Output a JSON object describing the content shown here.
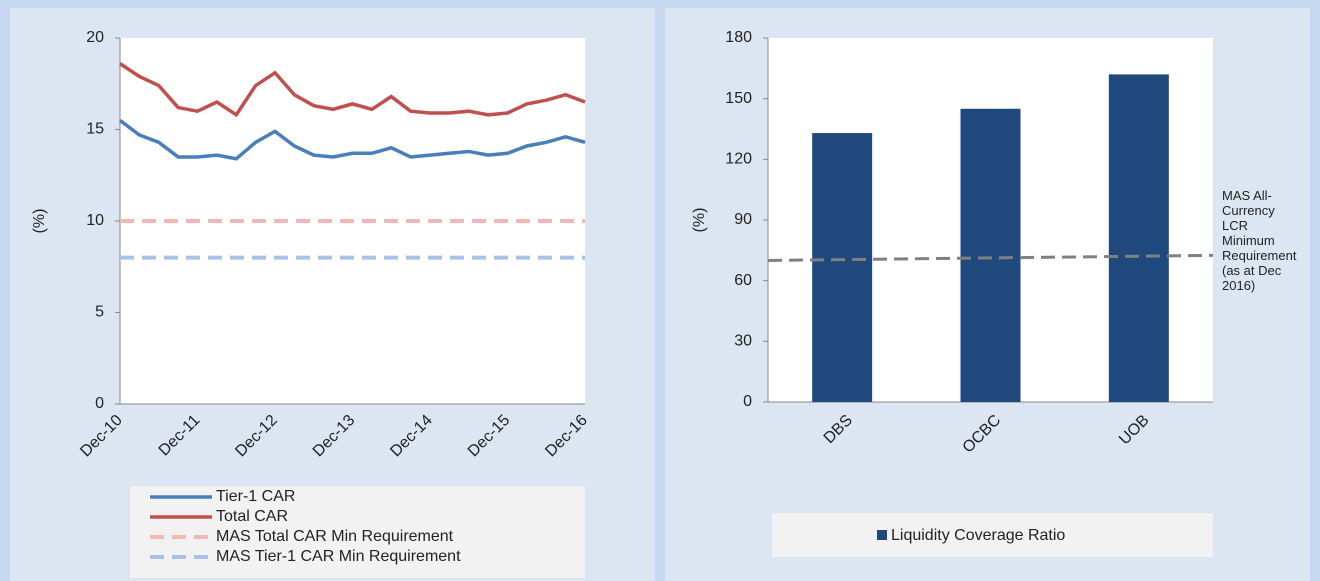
{
  "chart_data": [
    {
      "type": "line",
      "y_label": "(%)",
      "categories": [
        "Dec-10",
        null,
        null,
        null,
        "Dec-11",
        null,
        null,
        null,
        "Dec-12",
        null,
        null,
        null,
        "Dec-13",
        null,
        null,
        null,
        "Dec-14",
        null,
        null,
        null,
        "Dec-15",
        null,
        null,
        null,
        "Dec-16"
      ],
      "series": [
        {
          "name": "Tier-1 CAR",
          "color": "#4a7ebb",
          "dashed": false,
          "values": [
            15.5,
            14.7,
            14.3,
            13.5,
            13.5,
            13.6,
            13.4,
            14.3,
            14.9,
            14.1,
            13.6,
            13.5,
            13.7,
            13.7,
            14.0,
            13.5,
            13.6,
            13.7,
            13.8,
            13.6,
            13.7,
            14.1,
            14.3,
            14.6,
            14.3
          ]
        },
        {
          "name": "Total CAR",
          "color": "#c0504d",
          "dashed": false,
          "values": [
            18.6,
            17.9,
            17.4,
            16.2,
            16.0,
            16.5,
            15.8,
            17.4,
            18.1,
            16.9,
            16.3,
            16.1,
            16.4,
            16.1,
            16.8,
            16.0,
            15.9,
            15.9,
            16.0,
            15.8,
            15.9,
            16.4,
            16.6,
            16.9,
            16.5
          ]
        },
        {
          "name": "MAS Total CAR Min Requirement",
          "color": "#f2b8b6",
          "dashed": true,
          "values": [
            10,
            10,
            10,
            10,
            10,
            10,
            10,
            10,
            10,
            10,
            10,
            10,
            10,
            10,
            10,
            10,
            10,
            10,
            10,
            10,
            10,
            10,
            10,
            10,
            10
          ]
        },
        {
          "name": "MAS Tier-1 CAR Min Requirement",
          "color": "#a7c2e6",
          "dashed": true,
          "values": [
            8,
            8,
            8,
            8,
            8,
            8,
            8,
            8,
            8,
            8,
            8,
            8,
            8,
            8,
            8,
            8,
            8,
            8,
            8,
            8,
            8,
            8,
            8,
            8,
            8
          ]
        }
      ],
      "ylim": [
        0,
        20
      ],
      "yticks": [
        0,
        5,
        10,
        15,
        20
      ]
    },
    {
      "type": "bar",
      "y_label": "(%)",
      "categories": [
        "DBS",
        "OCBC",
        "UOB"
      ],
      "series": [
        {
          "name": "Liquidity Coverage Ratio",
          "color": "#1f497d",
          "values": [
            133,
            145,
            162
          ]
        }
      ],
      "reference_line": {
        "name": "MAS All-Currency LCR Minimum Requirement (as at Dec 2016)",
        "color": "#808080",
        "values": [
          70,
          72.5
        ]
      },
      "ylim": [
        0,
        180
      ],
      "yticks": [
        0,
        30,
        60,
        90,
        120,
        150,
        180
      ]
    }
  ]
}
